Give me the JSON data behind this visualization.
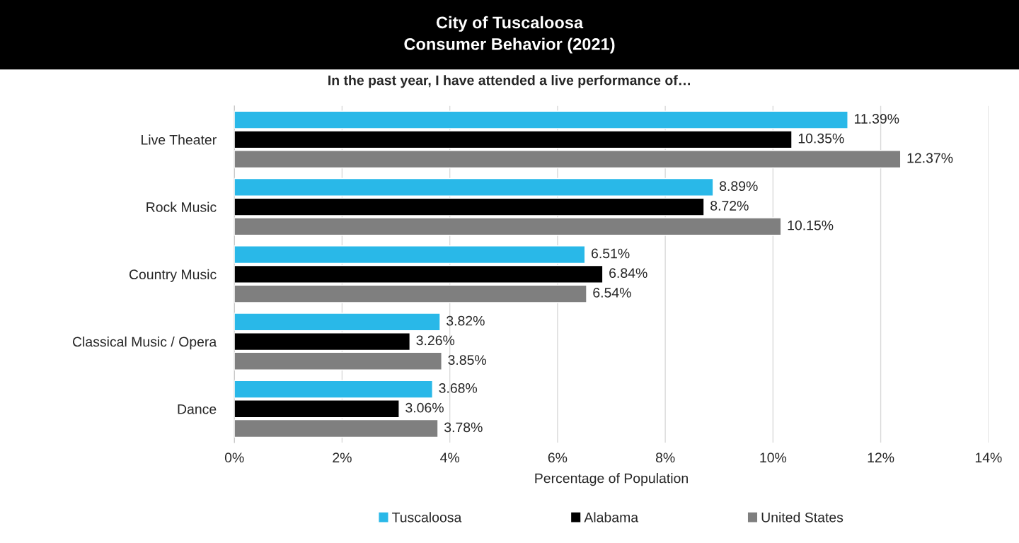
{
  "chart_data": {
    "type": "bar",
    "orientation": "horizontal",
    "title": "City of Tuscaloosa\nConsumer Behavior (2021)",
    "subtitle": "In the past year, I have attended a live performance of…",
    "xlabel": "Percentage of Population",
    "categories": [
      "Live Theater",
      "Rock Music",
      "Country Music",
      "Classical Music / Opera",
      "Dance"
    ],
    "series": [
      {
        "name": "Tuscaloosa",
        "color": "#29b8e8",
        "values": [
          11.39,
          8.89,
          6.51,
          3.82,
          3.68
        ],
        "value_labels": [
          "11.39%",
          "8.89%",
          "6.51%",
          "3.82%",
          "3.68%"
        ]
      },
      {
        "name": "Alabama",
        "color": "#000000",
        "values": [
          10.35,
          8.72,
          6.84,
          3.26,
          3.06
        ],
        "value_labels": [
          "10.35%",
          "8.72%",
          "6.84%",
          "3.26%",
          "3.06%"
        ]
      },
      {
        "name": "United States",
        "color": "#7f7f7f",
        "values": [
          12.37,
          10.15,
          6.54,
          3.85,
          3.78
        ],
        "value_labels": [
          "12.37%",
          "10.15%",
          "6.54%",
          "3.85%",
          "3.78%"
        ]
      }
    ],
    "xlim": [
      0,
      14
    ],
    "xticks": [
      {
        "value": 0,
        "label": "0%"
      },
      {
        "value": 2,
        "label": "2%"
      },
      {
        "value": 4,
        "label": "4%"
      },
      {
        "value": 6,
        "label": "6%"
      },
      {
        "value": 8,
        "label": "8%"
      },
      {
        "value": 10,
        "label": "10%"
      },
      {
        "value": 12,
        "label": "12%"
      },
      {
        "value": 14,
        "label": "14%"
      }
    ],
    "grid": "x",
    "legend": "bottom"
  }
}
